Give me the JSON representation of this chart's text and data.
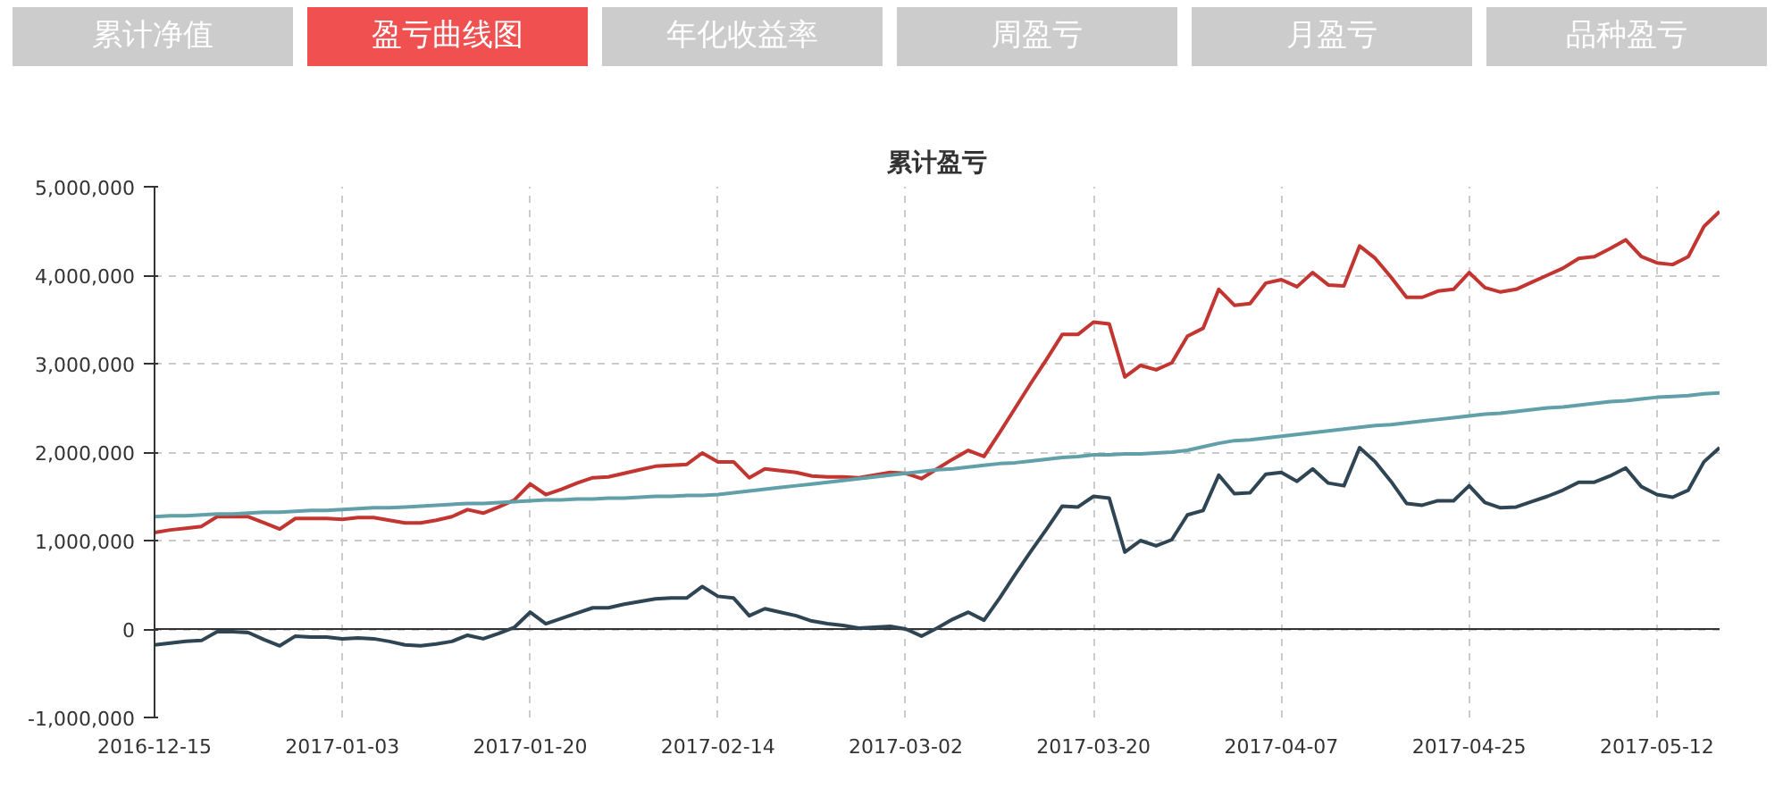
{
  "chart_data": {
    "type": "line",
    "title": "累计盈亏",
    "annotations": [
      "累计净值",
      "盈亏曲线图",
      "年化收益率",
      "周盈亏",
      "月盈亏",
      "品种盈亏"
    ],
    "categories": [
      "2016-12-15",
      null,
      null,
      null,
      null,
      null,
      null,
      null,
      null,
      null,
      null,
      null,
      "2017-01-03",
      null,
      null,
      null,
      null,
      null,
      null,
      null,
      null,
      null,
      null,
      null,
      "2017-01-20",
      null,
      null,
      null,
      null,
      null,
      null,
      null,
      null,
      null,
      null,
      null,
      "2017-02-14",
      null,
      null,
      null,
      null,
      null,
      null,
      null,
      null,
      null,
      null,
      null,
      "2017-03-02",
      null,
      null,
      null,
      null,
      null,
      null,
      null,
      null,
      null,
      null,
      null,
      "2017-03-20",
      null,
      null,
      null,
      null,
      null,
      null,
      null,
      null,
      null,
      null,
      null,
      "2017-04-07",
      null,
      null,
      null,
      null,
      null,
      null,
      null,
      null,
      null,
      null,
      null,
      "2017-04-25",
      null,
      null,
      null,
      null,
      null,
      null,
      null,
      null,
      null,
      null,
      null,
      "2017-05-12",
      null,
      null,
      null,
      null
    ],
    "series": [
      {
        "color": "#c23531",
        "values": [
          1090000,
          1120000,
          1140000,
          1160000,
          1270000,
          1270000,
          1270000,
          1200000,
          1130000,
          1250000,
          1250000,
          1250000,
          1240000,
          1260000,
          1260000,
          1230000,
          1200000,
          1200000,
          1230000,
          1270000,
          1350000,
          1310000,
          1380000,
          1460000,
          1640000,
          1520000,
          1580000,
          1650000,
          1710000,
          1720000,
          1760000,
          1800000,
          1840000,
          1850000,
          1860000,
          1990000,
          1890000,
          1890000,
          1710000,
          1810000,
          1790000,
          1770000,
          1730000,
          1720000,
          1720000,
          1710000,
          1740000,
          1770000,
          1760000,
          1700000,
          1810000,
          1920000,
          2020000,
          1950000,
          2220000,
          2500000,
          2780000,
          3050000,
          3330000,
          3330000,
          3470000,
          3450000,
          2850000,
          2980000,
          2930000,
          3010000,
          3310000,
          3400000,
          3840000,
          3660000,
          3680000,
          3910000,
          3950000,
          3870000,
          4030000,
          3890000,
          3880000,
          4330000,
          4190000,
          3980000,
          3750000,
          3750000,
          3820000,
          3840000,
          4030000,
          3860000,
          3810000,
          3840000,
          3920000,
          4000000,
          4080000,
          4190000,
          4210000,
          4300000,
          4400000,
          4210000,
          4140000,
          4120000,
          4210000,
          4550000,
          4720000
        ]
      },
      {
        "color": "#61a0a8",
        "values": [
          1270000,
          1280000,
          1280000,
          1290000,
          1300000,
          1300000,
          1310000,
          1320000,
          1320000,
          1330000,
          1340000,
          1340000,
          1350000,
          1360000,
          1370000,
          1370000,
          1380000,
          1390000,
          1400000,
          1410000,
          1420000,
          1420000,
          1430000,
          1440000,
          1450000,
          1460000,
          1460000,
          1470000,
          1470000,
          1480000,
          1480000,
          1490000,
          1500000,
          1500000,
          1510000,
          1510000,
          1520000,
          1540000,
          1560000,
          1580000,
          1600000,
          1620000,
          1640000,
          1660000,
          1680000,
          1700000,
          1720000,
          1740000,
          1760000,
          1780000,
          1800000,
          1810000,
          1830000,
          1850000,
          1870000,
          1880000,
          1900000,
          1920000,
          1940000,
          1950000,
          1970000,
          1970000,
          1980000,
          1980000,
          1990000,
          2000000,
          2020000,
          2060000,
          2100000,
          2130000,
          2140000,
          2160000,
          2180000,
          2200000,
          2220000,
          2240000,
          2260000,
          2280000,
          2300000,
          2310000,
          2330000,
          2350000,
          2370000,
          2390000,
          2410000,
          2430000,
          2440000,
          2460000,
          2480000,
          2500000,
          2510000,
          2530000,
          2550000,
          2570000,
          2580000,
          2600000,
          2620000,
          2630000,
          2640000,
          2660000,
          2670000
        ]
      },
      {
        "color": "#2f4554",
        "values": [
          -180000,
          -160000,
          -140000,
          -130000,
          -30000,
          -30000,
          -40000,
          -120000,
          -190000,
          -80000,
          -90000,
          -90000,
          -110000,
          -100000,
          -110000,
          -140000,
          -180000,
          -190000,
          -170000,
          -140000,
          -70000,
          -110000,
          -50000,
          20000,
          190000,
          60000,
          120000,
          180000,
          240000,
          240000,
          280000,
          310000,
          340000,
          350000,
          350000,
          480000,
          370000,
          350000,
          150000,
          230000,
          190000,
          150000,
          90000,
          60000,
          40000,
          10000,
          20000,
          30000,
          0,
          -80000,
          10000,
          110000,
          190000,
          100000,
          350000,
          620000,
          880000,
          1130000,
          1390000,
          1380000,
          1500000,
          1480000,
          870000,
          1000000,
          940000,
          1010000,
          1290000,
          1340000,
          1740000,
          1530000,
          1540000,
          1750000,
          1770000,
          1670000,
          1810000,
          1650000,
          1620000,
          2050000,
          1890000,
          1670000,
          1420000,
          1400000,
          1450000,
          1450000,
          1620000,
          1430000,
          1370000,
          1380000,
          1440000,
          1500000,
          1570000,
          1660000,
          1660000,
          1730000,
          1820000,
          1610000,
          1520000,
          1490000,
          1570000,
          1890000,
          2050000
        ]
      }
    ],
    "ylim": [
      -1000000,
      5000000
    ],
    "yticks": [
      {
        "value": -1000000,
        "label": "-1,000,000"
      },
      0,
      {
        "value": 1000000,
        "label": "1,000,000"
      },
      {
        "value": 2000000,
        "label": "2,000,000"
      },
      {
        "value": 3000000,
        "label": "3,000,000"
      },
      {
        "value": 4000000,
        "label": "4,000,000"
      },
      {
        "value": 5000000,
        "label": "5,000,000"
      }
    ],
    "grid": true,
    "line_style": "solid"
  }
}
